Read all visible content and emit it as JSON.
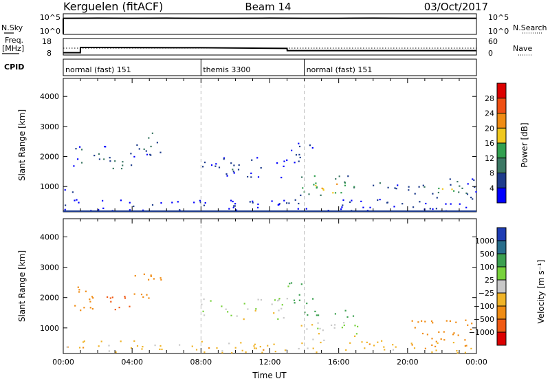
{
  "header": {
    "station": "Kerguelen (fitACF)",
    "beam": "Beam 14",
    "date": "03/Oct/2017"
  },
  "noise_panel": {
    "left_label": "N.Sky",
    "right_label": "N.Search",
    "top_tick": "10^5",
    "bottom_tick": "10^0",
    "right_top_tick": "10^5",
    "right_bottom_tick": "10^0"
  },
  "freq_panel": {
    "left_label_1": "Freq.",
    "left_label_2": "[MHz]",
    "left_top_tick": "18",
    "left_bottom_tick": "8",
    "right_top_tick": "60",
    "right_bottom_tick": "0",
    "right_label": "Nave"
  },
  "cpid_panel": {
    "label": "CPID",
    "modes": [
      {
        "name": "normal (fast) 151",
        "start_hour": 0,
        "end_hour": 8
      },
      {
        "name": "themis 3300",
        "start_hour": 8,
        "end_hour": 14
      },
      {
        "name": "normal (fast) 151",
        "start_hour": 14,
        "end_hour": 24
      }
    ]
  },
  "axis": {
    "xlabel": "Time UT",
    "xticks": [
      "00:00",
      "04:00",
      "08:00",
      "12:00",
      "16:00",
      "20:00",
      "00:00"
    ],
    "ylabel": "Slant Range [km]",
    "yticks": [
      "1000",
      "2000",
      "3000",
      "4000"
    ]
  },
  "power_colorbar": {
    "label": "Power [dB]",
    "ticks": [
      "4",
      "8",
      "12",
      "16",
      "20",
      "24",
      "28"
    ],
    "colors": [
      "#0000ff",
      "#1e3c8c",
      "#3c7864",
      "#32a050",
      "#f0c81e",
      "#f08c14",
      "#f05014",
      "#dc0000"
    ]
  },
  "velocity_colorbar": {
    "label": "Velocity [m s⁻¹]",
    "ticks": [
      "1000",
      "500",
      "100",
      "25",
      "−25",
      "−100",
      "−500",
      "−1000"
    ],
    "colors": [
      "#1e3cb4",
      "#286e8c",
      "#3ca050",
      "#78d23c",
      "#c8c8c8",
      "#f0b428",
      "#f08c14",
      "#f05a14",
      "#dc0000"
    ]
  },
  "chart_data": [
    {
      "type": "line",
      "name": "noise",
      "x_hours": [
        0,
        2,
        4,
        6,
        8,
        10,
        12,
        14,
        16,
        18,
        20,
        22,
        24
      ],
      "series": [
        {
          "values": [
            10000.0,
            11000.0,
            10000.0,
            11000.0,
            10000.0,
            10000.0,
            11000.0,
            10000.0,
            10000.0,
            11000.0,
            10000.0,
            10000.0,
            10000.0
          ]
        }
      ],
      "ylim": [
        1,
        100000
      ],
      "yscale": "log"
    },
    {
      "type": "line",
      "name": "frequency_and_nave",
      "x_hours": [
        0,
        0.99,
        1.0,
        8.0,
        13.0,
        13.01,
        24
      ],
      "series": [
        {
          "name": "Freq.",
          "values": [
            8.7,
            8.7,
            12.5,
            12.3,
            11.8,
            10.2,
            10.2
          ]
        },
        {
          "name": "Nave",
          "values": [
            24,
            24,
            24,
            24,
            24,
            24,
            24
          ]
        }
      ],
      "ylim": [
        8,
        18
      ],
      "y2lim": [
        0,
        60
      ]
    },
    {
      "type": "heatmap",
      "name": "power",
      "xlim_hours": [
        0,
        24
      ],
      "ylim_km": [
        180,
        4600
      ],
      "colorbar": "Power [dB]",
      "blobs": [
        {
          "t0": 0.5,
          "t1": 2.5,
          "r0": 1700,
          "r1": 2400,
          "db": 10
        },
        {
          "t0": 2.5,
          "t1": 4.0,
          "r0": 1500,
          "r1": 2200,
          "db": 12
        },
        {
          "t0": 4.0,
          "t1": 5.8,
          "r0": 2000,
          "r1": 2900,
          "db": 10
        },
        {
          "t0": 0.0,
          "t1": 0.8,
          "r0": 700,
          "r1": 1000,
          "db": 6
        },
        {
          "t0": 0.0,
          "t1": 24,
          "r0": 200,
          "r1": 600,
          "db": 5
        },
        {
          "t0": 8.0,
          "t1": 13.0,
          "r0": 1300,
          "r1": 2000,
          "db": 7
        },
        {
          "t0": 13.0,
          "t1": 14.5,
          "r0": 1800,
          "r1": 2600,
          "db": 8
        },
        {
          "t0": 13.5,
          "t1": 17.0,
          "r0": 700,
          "r1": 1400,
          "db": 20
        },
        {
          "t0": 14.5,
          "t1": 16.5,
          "r0": 800,
          "r1": 1200,
          "db": 26
        },
        {
          "t0": 17.0,
          "t1": 19.5,
          "r0": 900,
          "r1": 1200,
          "db": 8
        },
        {
          "t0": 20.0,
          "t1": 24.0,
          "r0": 600,
          "r1": 1300,
          "db": 10
        },
        {
          "t0": 21.5,
          "t1": 22.8,
          "r0": 700,
          "r1": 1200,
          "db": 20
        }
      ]
    },
    {
      "type": "heatmap",
      "name": "velocity",
      "xlim_hours": [
        0,
        24
      ],
      "ylim_km": [
        180,
        4600
      ],
      "colorbar": "Velocity [m s⁻¹]",
      "blobs": [
        {
          "t0": 0.5,
          "t1": 2.5,
          "r0": 1600,
          "r1": 2400,
          "v": -300
        },
        {
          "t0": 2.5,
          "t1": 4.0,
          "r0": 1500,
          "r1": 2200,
          "v": -600
        },
        {
          "t0": 4.0,
          "t1": 5.8,
          "r0": 2000,
          "r1": 2900,
          "v": -400
        },
        {
          "t0": 0.0,
          "t1": 24,
          "r0": 200,
          "r1": 600,
          "v": -60
        },
        {
          "t0": 8.0,
          "t1": 13.0,
          "r0": 1300,
          "r1": 2000,
          "v": 0
        },
        {
          "t0": 13.0,
          "t1": 14.5,
          "r0": 1800,
          "r1": 2600,
          "v": 150
        },
        {
          "t0": 13.5,
          "t1": 17.0,
          "r0": 1300,
          "r1": 1600,
          "v": 200
        },
        {
          "t0": 13.5,
          "t1": 17.5,
          "r0": 600,
          "r1": 1200,
          "v": 0
        },
        {
          "t0": 20.0,
          "t1": 24.0,
          "r0": 400,
          "r1": 1300,
          "v": -200
        }
      ]
    }
  ]
}
